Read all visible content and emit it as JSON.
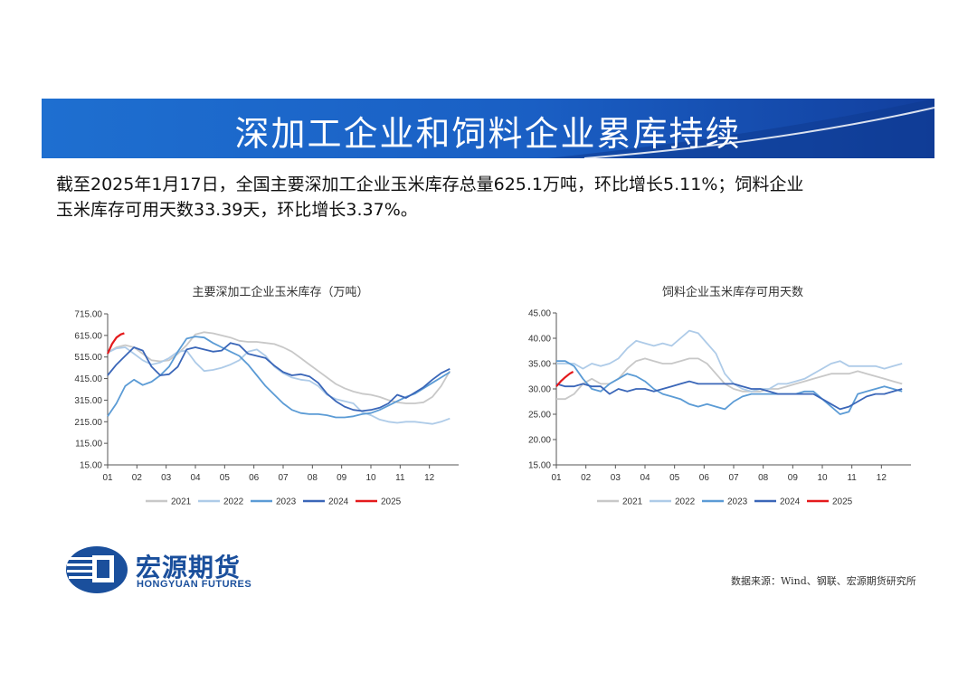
{
  "banner": {
    "title": "深加工企业和饲料企业累库持续"
  },
  "summary": {
    "line1": "截至2025年1月17日，全国主要深加工企业玉米库存总量625.1万吨，环比增长5.11%；饲料企业",
    "line2": "玉米库存可用天数33.39天，环比增长3.37%。"
  },
  "logo": {
    "cn": "宏源期货",
    "en": "HONGYUAN FUTURES"
  },
  "source": "数据来源：Wind、钢联、宏源期货研究所",
  "colors": {
    "banner": "#1a5fc4",
    "s2021": "#c8c8c8",
    "s2022": "#aecbe8",
    "s2023": "#5b9bd5",
    "s2024": "#3a66b8",
    "s2025": "#e41a1c",
    "brand": "#1a4f9c"
  },
  "chart_data": [
    {
      "type": "line",
      "title": "主要深加工企业玉米库存（万吨）",
      "x_ticks": [
        "01",
        "02",
        "03",
        "04",
        "05",
        "06",
        "07",
        "08",
        "09",
        "10",
        "11",
        "12"
      ],
      "y_ticks": [
        "15.00",
        "115.00",
        "215.00",
        "315.00",
        "415.00",
        "515.00",
        "615.00",
        "715.00"
      ],
      "ylim": [
        15,
        715
      ],
      "x_range": [
        1,
        13
      ],
      "legend": "bottom",
      "series": [
        {
          "name": "2021",
          "color": "#c8c8c8",
          "x": [
            1.0,
            1.3,
            1.6,
            1.9,
            2.2,
            2.5,
            2.8,
            3.1,
            3.4,
            3.7,
            4.0,
            4.3,
            4.6,
            4.9,
            5.2,
            5.5,
            5.8,
            6.1,
            6.4,
            6.7,
            7.0,
            7.3,
            7.6,
            7.9,
            8.2,
            8.5,
            8.8,
            9.1,
            9.4,
            9.7,
            10.0,
            10.3,
            10.6,
            10.9,
            11.2,
            11.5,
            11.8,
            12.1,
            12.4,
            12.7
          ],
          "y": [
            535,
            560,
            570,
            560,
            530,
            500,
            495,
            500,
            530,
            570,
            620,
            630,
            625,
            615,
            605,
            590,
            585,
            585,
            580,
            575,
            560,
            540,
            510,
            480,
            450,
            420,
            390,
            370,
            355,
            345,
            340,
            330,
            315,
            305,
            300,
            300,
            305,
            330,
            380,
            450
          ]
        },
        {
          "name": "2022",
          "color": "#aecbe8",
          "x": [
            1.0,
            1.3,
            1.6,
            1.9,
            2.2,
            2.5,
            2.8,
            3.1,
            3.4,
            3.7,
            4.0,
            4.3,
            4.6,
            4.9,
            5.2,
            5.5,
            5.8,
            6.1,
            6.4,
            6.7,
            7.0,
            7.3,
            7.6,
            7.9,
            8.2,
            8.5,
            8.8,
            9.1,
            9.4,
            9.7,
            10.0,
            10.3,
            10.6,
            10.9,
            11.2,
            11.5,
            11.8,
            12.1,
            12.4,
            12.7
          ],
          "y": [
            535,
            555,
            560,
            530,
            500,
            480,
            490,
            510,
            540,
            545,
            490,
            450,
            455,
            465,
            480,
            500,
            540,
            550,
            520,
            470,
            440,
            420,
            410,
            405,
            380,
            340,
            320,
            310,
            300,
            260,
            245,
            225,
            215,
            210,
            215,
            215,
            210,
            205,
            215,
            230
          ]
        },
        {
          "name": "2023",
          "color": "#5b9bd5",
          "x": [
            1.0,
            1.3,
            1.6,
            1.9,
            2.2,
            2.5,
            2.8,
            3.1,
            3.4,
            3.7,
            4.0,
            4.3,
            4.6,
            4.9,
            5.2,
            5.5,
            5.8,
            6.1,
            6.4,
            6.7,
            7.0,
            7.3,
            7.6,
            7.9,
            8.2,
            8.5,
            8.8,
            9.1,
            9.4,
            9.7,
            10.0,
            10.3,
            10.6,
            10.9,
            11.2,
            11.5,
            11.8,
            12.1,
            12.4,
            12.7
          ],
          "y": [
            240,
            300,
            380,
            410,
            385,
            400,
            430,
            470,
            540,
            600,
            610,
            605,
            580,
            560,
            540,
            520,
            480,
            430,
            380,
            340,
            300,
            270,
            255,
            250,
            250,
            245,
            235,
            235,
            240,
            250,
            255,
            270,
            290,
            310,
            330,
            345,
            370,
            395,
            420,
            445
          ]
        },
        {
          "name": "2024",
          "color": "#3a66b8",
          "x": [
            1.0,
            1.3,
            1.6,
            1.9,
            2.2,
            2.5,
            2.8,
            3.1,
            3.4,
            3.7,
            4.0,
            4.3,
            4.6,
            4.9,
            5.2,
            5.5,
            5.8,
            6.1,
            6.4,
            6.7,
            7.0,
            7.3,
            7.6,
            7.9,
            8.2,
            8.5,
            8.8,
            9.1,
            9.4,
            9.7,
            10.0,
            10.3,
            10.6,
            10.9,
            11.2,
            11.5,
            11.8,
            12.1,
            12.4,
            12.7
          ],
          "y": [
            430,
            480,
            520,
            560,
            545,
            470,
            430,
            435,
            470,
            550,
            560,
            550,
            540,
            545,
            580,
            570,
            530,
            520,
            510,
            475,
            445,
            430,
            435,
            425,
            395,
            345,
            310,
            285,
            270,
            265,
            270,
            280,
            300,
            340,
            325,
            350,
            375,
            410,
            440,
            460
          ]
        },
        {
          "name": "2025",
          "color": "#e41a1c",
          "x": [
            1.0,
            1.15,
            1.3,
            1.45,
            1.57
          ],
          "y": [
            530,
            575,
            605,
            620,
            625.1
          ]
        }
      ]
    },
    {
      "type": "line",
      "title": "饲料企业玉米库存可用天数",
      "x_ticks": [
        "01",
        "02",
        "03",
        "04",
        "05",
        "06",
        "07",
        "08",
        "09",
        "10",
        "11",
        "12"
      ],
      "y_ticks": [
        "15.00",
        "20.00",
        "25.00",
        "30.00",
        "35.00",
        "40.00",
        "45.00"
      ],
      "ylim": [
        15,
        45
      ],
      "x_range": [
        1,
        13
      ],
      "legend": "bottom",
      "series": [
        {
          "name": "2021",
          "color": "#c8c8c8",
          "x": [
            1.0,
            1.3,
            1.6,
            1.9,
            2.2,
            2.5,
            2.8,
            3.1,
            3.4,
            3.7,
            4.0,
            4.3,
            4.6,
            4.9,
            5.2,
            5.5,
            5.8,
            6.1,
            6.4,
            6.7,
            7.0,
            7.3,
            7.6,
            7.9,
            8.2,
            8.5,
            8.8,
            9.1,
            9.4,
            9.7,
            10.0,
            10.3,
            10.6,
            10.9,
            11.2,
            11.5,
            11.8,
            12.1,
            12.4,
            12.7
          ],
          "y": [
            28,
            28,
            29,
            31,
            32,
            31,
            31,
            32,
            34,
            35.5,
            36,
            35.5,
            35,
            35,
            35.5,
            36,
            36,
            35,
            33,
            31,
            30,
            29.5,
            29.5,
            29.5,
            30,
            30,
            30.5,
            31,
            31.5,
            32,
            32.5,
            33,
            33,
            33,
            33.5,
            33,
            32.5,
            32,
            31.5,
            31
          ]
        },
        {
          "name": "2022",
          "color": "#aecbe8",
          "x": [
            1.0,
            1.3,
            1.6,
            1.9,
            2.2,
            2.5,
            2.8,
            3.1,
            3.4,
            3.7,
            4.0,
            4.3,
            4.6,
            4.9,
            5.2,
            5.5,
            5.8,
            6.1,
            6.4,
            6.7,
            7.0,
            7.3,
            7.6,
            7.9,
            8.2,
            8.5,
            8.8,
            9.1,
            9.4,
            9.7,
            10.0,
            10.3,
            10.6,
            10.9,
            11.2,
            11.5,
            11.8,
            12.1,
            12.4,
            12.7
          ],
          "y": [
            35,
            35,
            35,
            34,
            35,
            34.5,
            35,
            36,
            38,
            39.5,
            39,
            38.5,
            39,
            38.5,
            40,
            41.5,
            41,
            39,
            37,
            33,
            31,
            30,
            29.5,
            30,
            30,
            31,
            31,
            31.5,
            32,
            33,
            34,
            35,
            35.5,
            34.5,
            34.5,
            34.5,
            34.5,
            34,
            34.5,
            35
          ]
        },
        {
          "name": "2023",
          "color": "#5b9bd5",
          "x": [
            1.0,
            1.3,
            1.6,
            1.9,
            2.2,
            2.5,
            2.8,
            3.1,
            3.4,
            3.7,
            4.0,
            4.3,
            4.6,
            4.9,
            5.2,
            5.5,
            5.8,
            6.1,
            6.4,
            6.7,
            7.0,
            7.3,
            7.6,
            7.9,
            8.2,
            8.5,
            8.8,
            9.1,
            9.4,
            9.7,
            10.0,
            10.3,
            10.6,
            10.9,
            11.2,
            11.5,
            11.8,
            12.1,
            12.4,
            12.7
          ],
          "y": [
            35.5,
            35.5,
            34.5,
            32,
            30,
            29.5,
            31,
            32,
            33,
            32.5,
            31.5,
            30,
            29,
            28.5,
            28,
            27,
            26.5,
            27,
            26.5,
            26,
            27.5,
            28.5,
            29,
            29,
            29,
            29,
            29,
            29,
            29.5,
            29.5,
            28,
            26.5,
            25,
            25.5,
            29,
            29.5,
            30,
            30.5,
            30,
            29.5
          ]
        },
        {
          "name": "2024",
          "color": "#3a66b8",
          "x": [
            1.0,
            1.3,
            1.6,
            1.9,
            2.2,
            2.5,
            2.8,
            3.1,
            3.4,
            3.7,
            4.0,
            4.3,
            4.6,
            4.9,
            5.2,
            5.5,
            5.8,
            6.1,
            6.4,
            6.7,
            7.0,
            7.3,
            7.6,
            7.9,
            8.2,
            8.5,
            8.8,
            9.1,
            9.4,
            9.7,
            10.0,
            10.3,
            10.6,
            10.9,
            11.2,
            11.5,
            11.8,
            12.1,
            12.4,
            12.7
          ],
          "y": [
            31,
            30.5,
            30.5,
            31,
            30.5,
            30.5,
            29,
            30,
            29.5,
            30,
            30,
            29.5,
            30,
            30.5,
            31,
            31.5,
            31,
            31,
            31,
            31,
            31,
            30.5,
            30,
            30,
            29.5,
            29,
            29,
            29,
            29,
            29,
            28,
            27,
            26,
            26.5,
            27.5,
            28.5,
            29,
            29,
            29.5,
            30
          ]
        },
        {
          "name": "2025",
          "color": "#e41a1c",
          "x": [
            1.0,
            1.15,
            1.3,
            1.45,
            1.57
          ],
          "y": [
            30.5,
            31.5,
            32.3,
            33,
            33.39
          ]
        }
      ]
    }
  ]
}
